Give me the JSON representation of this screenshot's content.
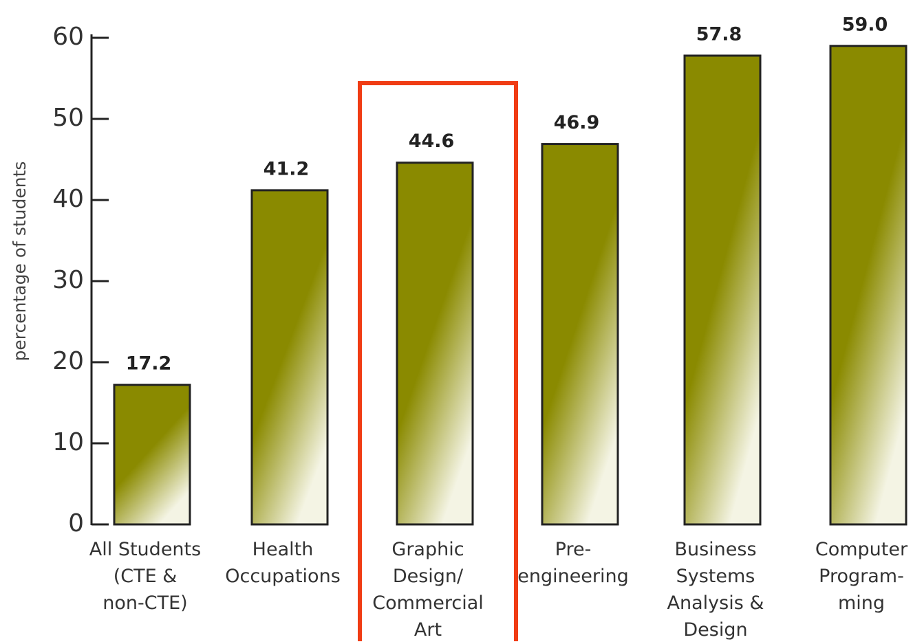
{
  "chart_data": {
    "type": "bar",
    "y_label": "percentage of students",
    "categories": [
      "All Students\n(CTE &\nnon-CTE)",
      "Health\nOccupations",
      "Graphic\nDesign/\nCommercial\nArt",
      "Pre-\nengineering",
      "Business\nSystems\nAnalysis &\nDesign",
      "Computer\nProgram-\nming"
    ],
    "values": [
      17.2,
      41.2,
      44.6,
      46.9,
      57.8,
      59.0
    ],
    "value_labels": [
      "17.2",
      "41.2",
      "44.6",
      "46.9",
      "57.8",
      "59.0"
    ],
    "color": "#8a8a00",
    "ylim": [
      0,
      60
    ],
    "yticks": [
      0,
      10,
      20,
      30,
      40,
      50,
      60
    ],
    "grid": false
  }
}
